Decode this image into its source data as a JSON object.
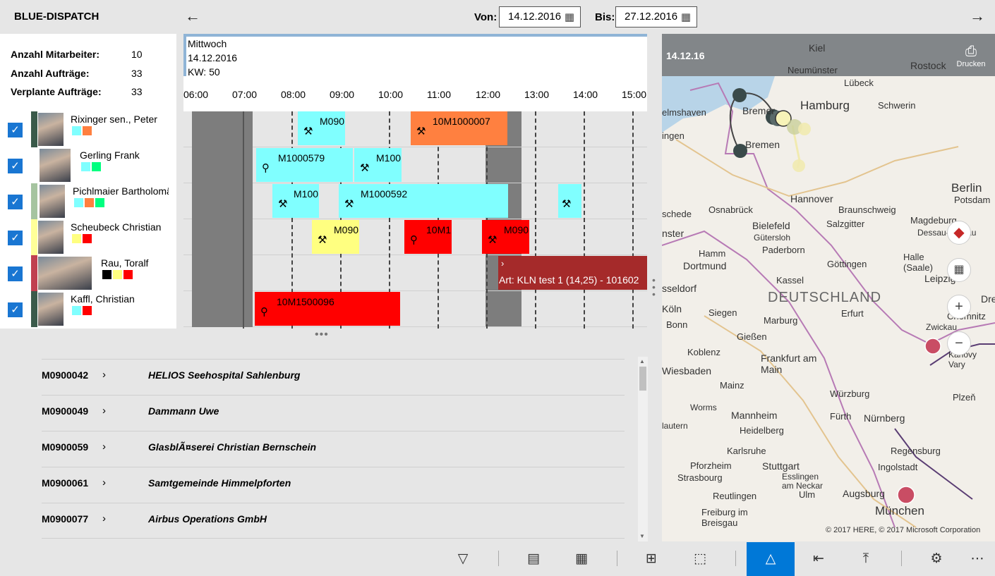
{
  "app": {
    "title": "BLUE-DISPATCH"
  },
  "header": {
    "from_label": "Von:",
    "from_value": "14.12.2016",
    "to_label": "Bis:",
    "to_value": "27.12.2016"
  },
  "stats": [
    {
      "label": "Anzahl Mitarbeiter:",
      "value": "10"
    },
    {
      "label": "Anzahl Aufträge:",
      "value": "33"
    },
    {
      "label": "Verplante Aufträge:",
      "value": "33"
    }
  ],
  "employees": [
    {
      "name": "Rixinger sen., Peter",
      "strip": "#3a5a4a",
      "swatches": [
        "#80ffff",
        "#ff8040"
      ]
    },
    {
      "name": "Gerling Frank",
      "strip": "#ffffff",
      "swatches": [
        "#80ffff",
        "#00ff80"
      ]
    },
    {
      "name": "Pichlmaier Bartholomäus",
      "strip": "#a6c4a0",
      "swatches": [
        "#80ffff",
        "#ff8040",
        "#00ff80"
      ]
    },
    {
      "name": "Scheubeck Christian",
      "strip": "#ffff99",
      "swatches": [
        "#ffff80",
        "#ff0000"
      ]
    },
    {
      "name": "Rau, Toralf",
      "strip": "#c04050",
      "swatches": [
        "#000000",
        "#ffff80",
        "#ff0000"
      ]
    },
    {
      "name": "Kaffl, Christian",
      "strip": "#3a5a4a",
      "swatches": [
        "#80ffff",
        "#ff0000"
      ]
    }
  ],
  "gantt": {
    "day_name": "Mittwoch",
    "day_date": "14.12.2016",
    "week": "KW: 50",
    "hours": [
      "06:00",
      "07:00",
      "08:00",
      "09:00",
      "10:00",
      "11:00",
      "12:00",
      "13:00",
      "14:00",
      "15:00"
    ],
    "blocks": [
      {
        "row": 0,
        "label": "M090",
        "icon": "⚒"
      },
      {
        "row": 0,
        "label": "10M1000007",
        "icon": "⚒"
      },
      {
        "row": 1,
        "label": "M1000579",
        "icon": "⚲"
      },
      {
        "row": 1,
        "label": "M100",
        "icon": "⚒"
      },
      {
        "row": 2,
        "label": "M100",
        "icon": "⚒"
      },
      {
        "row": 2,
        "label": "M1000592",
        "icon": "⚒"
      },
      {
        "row": 2,
        "label": "",
        "icon": "⚒"
      },
      {
        "row": 3,
        "label": "M090",
        "icon": "⚒"
      },
      {
        "row": 3,
        "label": "10M1",
        "icon": "⚲"
      },
      {
        "row": 3,
        "label": "M090",
        "icon": "⚒"
      },
      {
        "row": 4,
        "label": "Art: KLN test 1 (14,25) - 101602",
        "icon": "›"
      },
      {
        "row": 5,
        "label": "10M1500096",
        "icon": "⚲"
      }
    ]
  },
  "orders": [
    {
      "id": "M0900042",
      "name": "HELIOS Seehospital Sahlenburg"
    },
    {
      "id": "M0900049",
      "name": "Dammann Uwe"
    },
    {
      "id": "M0900059",
      "name": "GlasblÃ¤serei Christian Bernschein"
    },
    {
      "id": "M0900061",
      "name": "Samtgemeinde Himmelpforten"
    },
    {
      "id": "M0900077",
      "name": "Airbus Operations GmbH"
    }
  ],
  "map": {
    "date": "14.12.16",
    "print_label": "Drucken",
    "copyright": "© 2017 HERE, © 2017 Microsoft Corporation",
    "cities": [
      "Kiel",
      "Rostock",
      "Neumünster",
      "Lübeck",
      "Hamburg",
      "Schwerin",
      "Bremer",
      "Bremen",
      "elmshaven",
      "ingen",
      "Hannover",
      "Berlin",
      "Potsdam",
      "Osnabrück",
      "Braunschweig",
      "Magdeburg",
      "Bielefeld",
      "Gütersloh",
      "Salzgitter",
      "Dessau-Roßlau",
      "Paderborn",
      "Halle (Saale)",
      "Hamm",
      "Dortmund",
      "Göttingen",
      "Leipzig",
      "sseldorf",
      "Kassel",
      "DEUTSCHLAND",
      "Köln",
      "Siegen",
      "Erfurt",
      "Chemnitz",
      "Bonn",
      "Marburg",
      "Zwickau",
      "Gießen",
      "Koblenz",
      "Karlovy Vary",
      "Frankfurt am Main",
      "Wiesbaden",
      "Mainz",
      "Würzburg",
      "Plzeň",
      "Worms",
      "Mannheim",
      "Fürth",
      "Nürnberg",
      "Heidelberg",
      "lautern",
      "Karlsruhe",
      "Regensburg",
      "Pforzheim",
      "Stuttgart",
      "Strasbourg",
      "Esslingen am Neckar",
      "Ingolstadt",
      "Reutlingen",
      "Ulm",
      "Augsburg",
      "München",
      "Freiburg im Breisgau",
      "schede",
      "nster",
      "Dre"
    ]
  },
  "toolbar": {
    "icons": [
      "filter-icon",
      "calendar-week-icon",
      "calendar-month-icon",
      "grid-icon",
      "select-icon",
      "route-icon",
      "collapse-icon",
      "upload-icon",
      "gear-icon",
      "more-icon"
    ]
  }
}
